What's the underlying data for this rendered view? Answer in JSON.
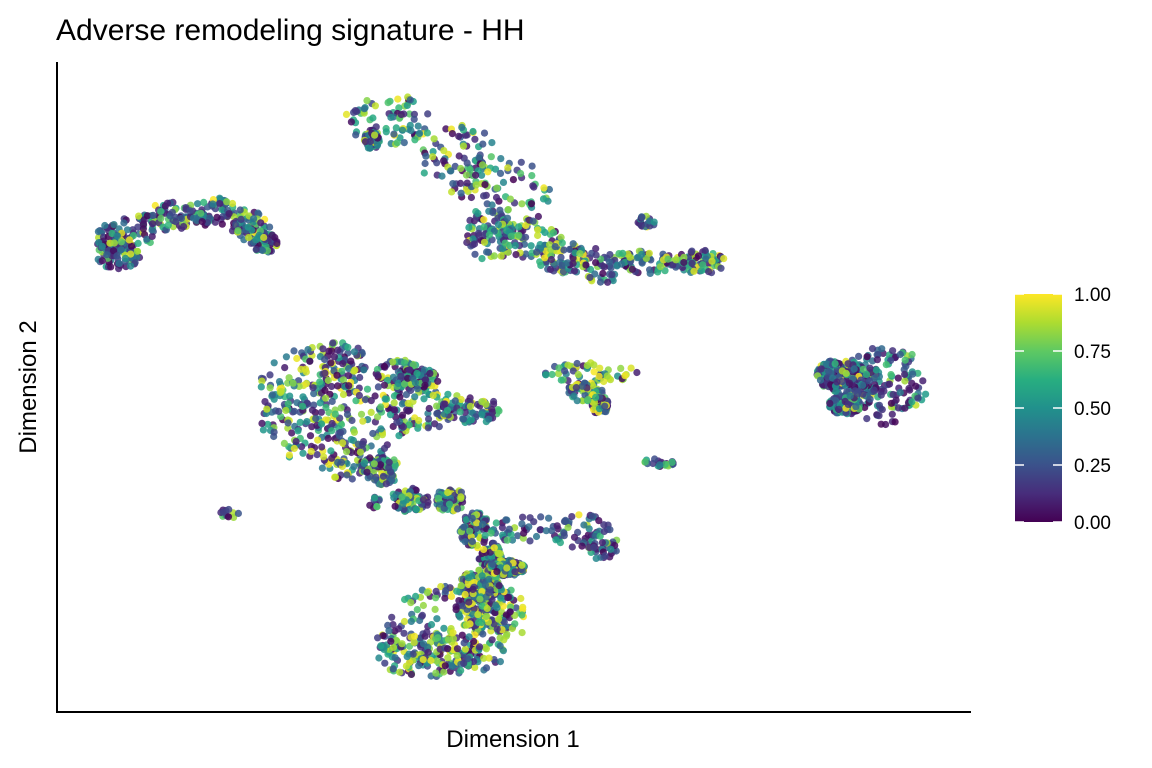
{
  "chart_data": {
    "type": "scatter",
    "title": "Adverse remodeling signature - HH",
    "xlabel": "Dimension 1",
    "ylabel": "Dimension 2",
    "xticks": [],
    "yticks": [],
    "grid": false,
    "colorbar": {
      "min": 0.0,
      "max": 1.0,
      "ticks": [
        "0.00",
        "0.25",
        "0.50",
        "0.75",
        "1.00"
      ],
      "colormap": "viridis",
      "placement": "right"
    },
    "clusters": [
      {
        "label": "",
        "center": [
          7.5,
          22.5
        ],
        "signature_mean": 0.25
      },
      {
        "label": "",
        "center": [
          24.5,
          20.0
        ],
        "signature_mean": 0.4
      },
      {
        "label": "",
        "center": [
          26.0,
          14.5
        ],
        "signature_mean": 0.35
      },
      {
        "label": "",
        "center": [
          33.0,
          18.5
        ],
        "signature_mean": 0.4
      },
      {
        "label": "",
        "center": [
          19.5,
          11.5
        ],
        "signature_mean": 0.62
      },
      {
        "label": "",
        "center": [
          30.5,
          10.0
        ],
        "signature_mean": 0.35
      },
      {
        "label": "",
        "center": [
          46.0,
          8.5
        ],
        "signature_mean": 0.12
      },
      {
        "label": "",
        "center": [
          32.5,
          6.5
        ],
        "signature_mean": 0.4
      },
      {
        "label": "",
        "center": [
          22.5,
          0.5
        ],
        "signature_mean": 0.55
      },
      {
        "label": "",
        "center": [
          30.0,
          1.5
        ],
        "signature_mean": 0.18
      }
    ]
  }
}
